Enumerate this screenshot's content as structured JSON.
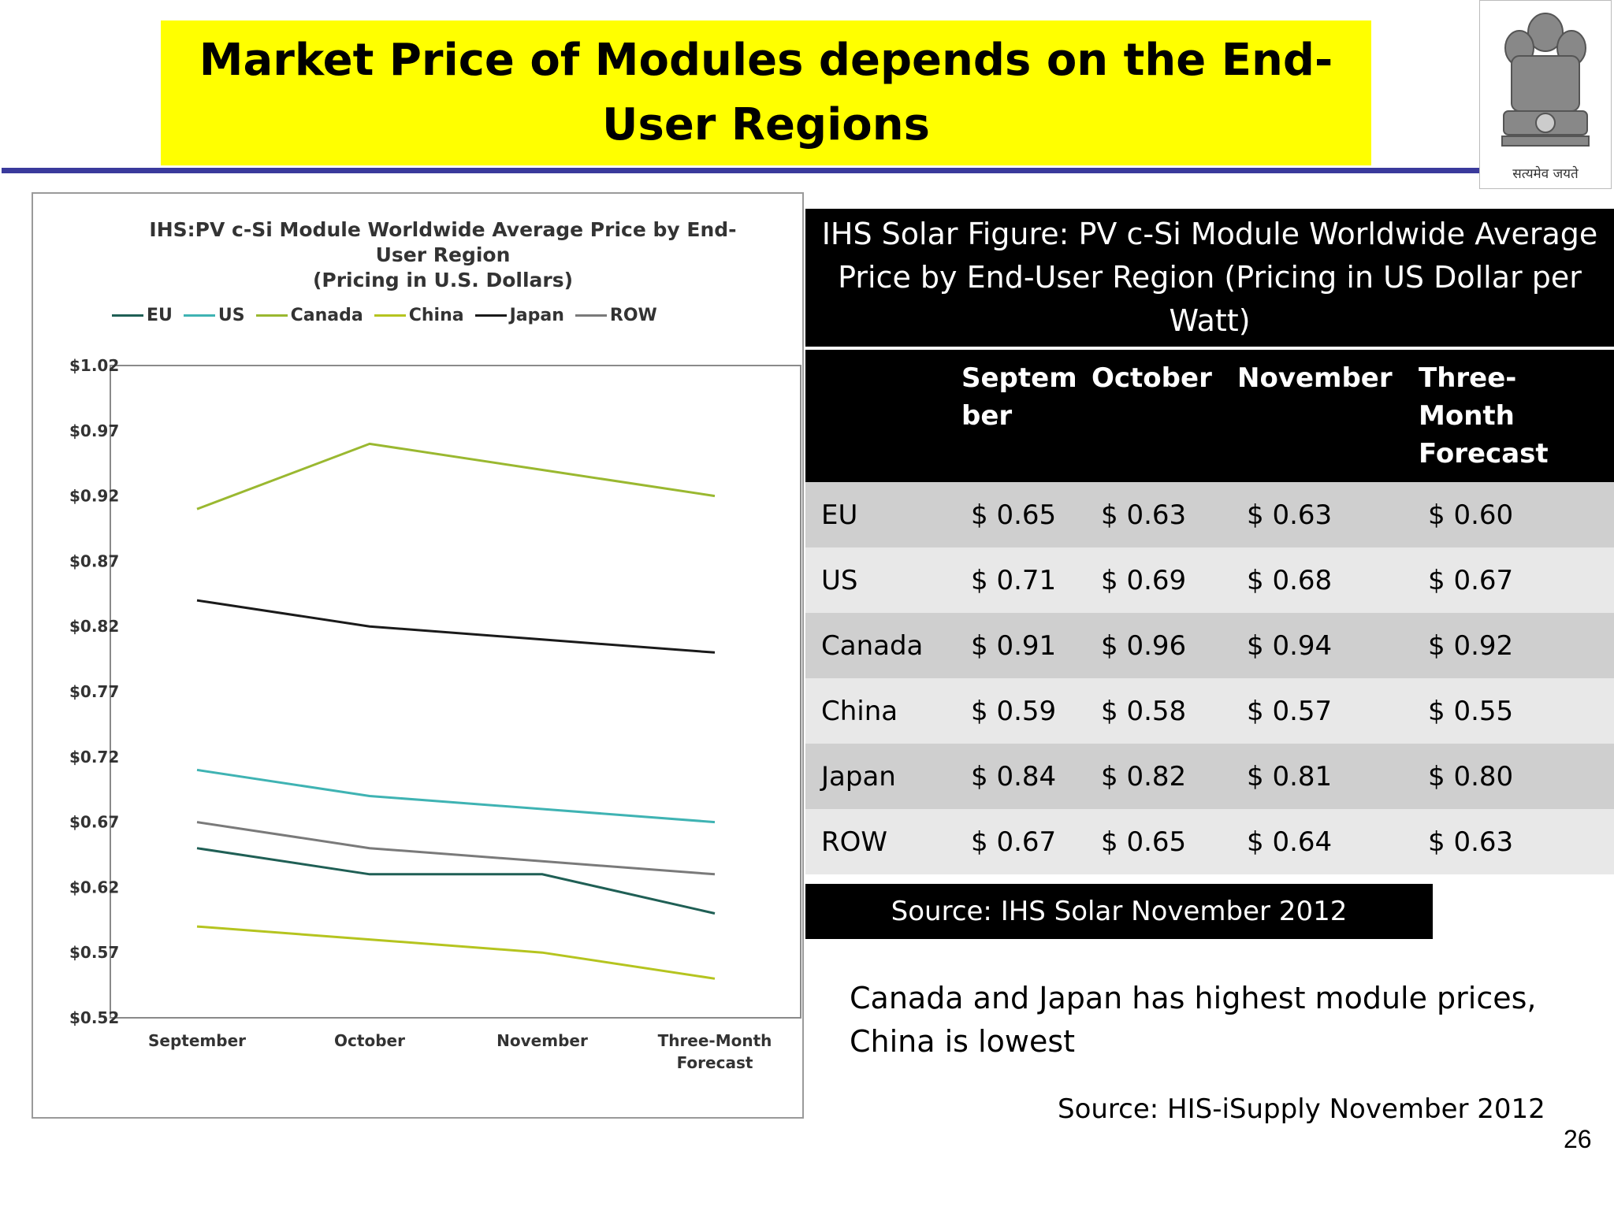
{
  "slide": {
    "title": "Market Price of Modules depends on the End-User Regions",
    "emblem_caption": "सत्यमेव जयते",
    "page_number": "26"
  },
  "chart_data": {
    "type": "line",
    "title": "IHS:PV c-Si Module Worldwide Average Price by End-User Region (Pricing in U.S. Dollars)",
    "title_lines": [
      "IHS:PV c-Si Module Worldwide Average Price by End-",
      "User Region",
      "(Pricing in U.S. Dollars)"
    ],
    "categories": [
      "September",
      "October",
      "November",
      "Three-Month Forecast"
    ],
    "category_lines": [
      [
        "September"
      ],
      [
        "October"
      ],
      [
        "November"
      ],
      [
        "Three-Month",
        "Forecast"
      ]
    ],
    "y_ticks": [
      "$1.02",
      "$0.97",
      "$0.92",
      "$0.87",
      "$0.82",
      "$0.77",
      "$0.72",
      "$0.67",
      "$0.62",
      "$0.57",
      "$0.52"
    ],
    "ylim": [
      0.52,
      1.02
    ],
    "grid": false,
    "legend_position": "top",
    "series": [
      {
        "name": "EU",
        "color": "#1f5f55",
        "values": [
          0.65,
          0.63,
          0.63,
          0.6
        ]
      },
      {
        "name": "US",
        "color": "#3fb3b3",
        "values": [
          0.71,
          0.69,
          0.68,
          0.67
        ]
      },
      {
        "name": "Canada",
        "color": "#9ab830",
        "values": [
          0.91,
          0.96,
          0.94,
          0.92
        ]
      },
      {
        "name": "China",
        "color": "#b5c41f",
        "values": [
          0.59,
          0.58,
          0.57,
          0.55
        ]
      },
      {
        "name": "Japan",
        "color": "#1a1a1a",
        "values": [
          0.84,
          0.82,
          0.81,
          0.8
        ]
      },
      {
        "name": "ROW",
        "color": "#7a7a7a",
        "values": [
          0.67,
          0.65,
          0.64,
          0.63
        ]
      }
    ]
  },
  "table": {
    "caption": "IHS Solar Figure: PV c-Si Module Worldwide Average Price by End-User Region (Pricing in US Dollar per Watt)",
    "headers": [
      "",
      "Septem ber",
      "October",
      "November",
      "Three-Month Forecast"
    ],
    "rows": [
      [
        "EU",
        "$ 0.65",
        "$ 0.63",
        "$ 0.63",
        "$ 0.60"
      ],
      [
        "US",
        "$ 0.71",
        "$ 0.69",
        "$ 0.68",
        "$ 0.67"
      ],
      [
        "Canada",
        "$ 0.91",
        "$ 0.96",
        "$ 0.94",
        "$ 0.92"
      ],
      [
        "China",
        "$ 0.59",
        "$ 0.58",
        "$ 0.57",
        "$ 0.55"
      ],
      [
        "Japan",
        "$ 0.84",
        "$ 0.82",
        "$ 0.81",
        "$ 0.80"
      ],
      [
        "ROW",
        "$ 0.67",
        "$ 0.65",
        "$ 0.64",
        "$ 0.63"
      ]
    ],
    "source": "Source: IHS Solar November 2012"
  },
  "note": "Canada and Japan has highest module prices, China is lowest",
  "source2": "Source: HIS-iSupply November 2012"
}
